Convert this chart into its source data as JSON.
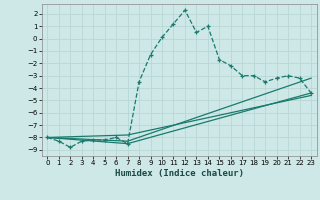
{
  "xlabel": "Humidex (Indice chaleur)",
  "bg_color": "#cde8e6",
  "grid_color": "#b8d8d5",
  "line_color": "#1a7a6e",
  "xlim": [
    -0.5,
    23.5
  ],
  "ylim": [
    -9.5,
    2.8
  ],
  "yticks": [
    2,
    1,
    0,
    -1,
    -2,
    -3,
    -4,
    -5,
    -6,
    -7,
    -8,
    -9
  ],
  "xticks": [
    0,
    1,
    2,
    3,
    4,
    5,
    6,
    7,
    8,
    9,
    10,
    11,
    12,
    13,
    14,
    15,
    16,
    17,
    18,
    19,
    20,
    21,
    22,
    23
  ],
  "series1_x": [
    0,
    1,
    2,
    3,
    4,
    5,
    6,
    7,
    8,
    9,
    10,
    11,
    12,
    13,
    14,
    15,
    16,
    17,
    18,
    19,
    20,
    21,
    22,
    23
  ],
  "series1_y": [
    -8.0,
    -8.3,
    -8.8,
    -8.3,
    -8.2,
    -8.2,
    -8.0,
    -8.5,
    -3.5,
    -1.3,
    0.1,
    1.2,
    2.3,
    0.5,
    1.0,
    -1.7,
    -2.2,
    -3.0,
    -3.0,
    -3.5,
    -3.2,
    -3.0,
    -3.2,
    -4.4
  ],
  "series2_x": [
    0,
    7,
    23
  ],
  "series2_y": [
    -8.0,
    -8.5,
    -4.4
  ],
  "series3_x": [
    0,
    7,
    23
  ],
  "series3_y": [
    -8.0,
    -8.3,
    -3.2
  ],
  "series4_x": [
    0,
    7,
    23
  ],
  "series4_y": [
    -8.0,
    -7.8,
    -4.6
  ]
}
